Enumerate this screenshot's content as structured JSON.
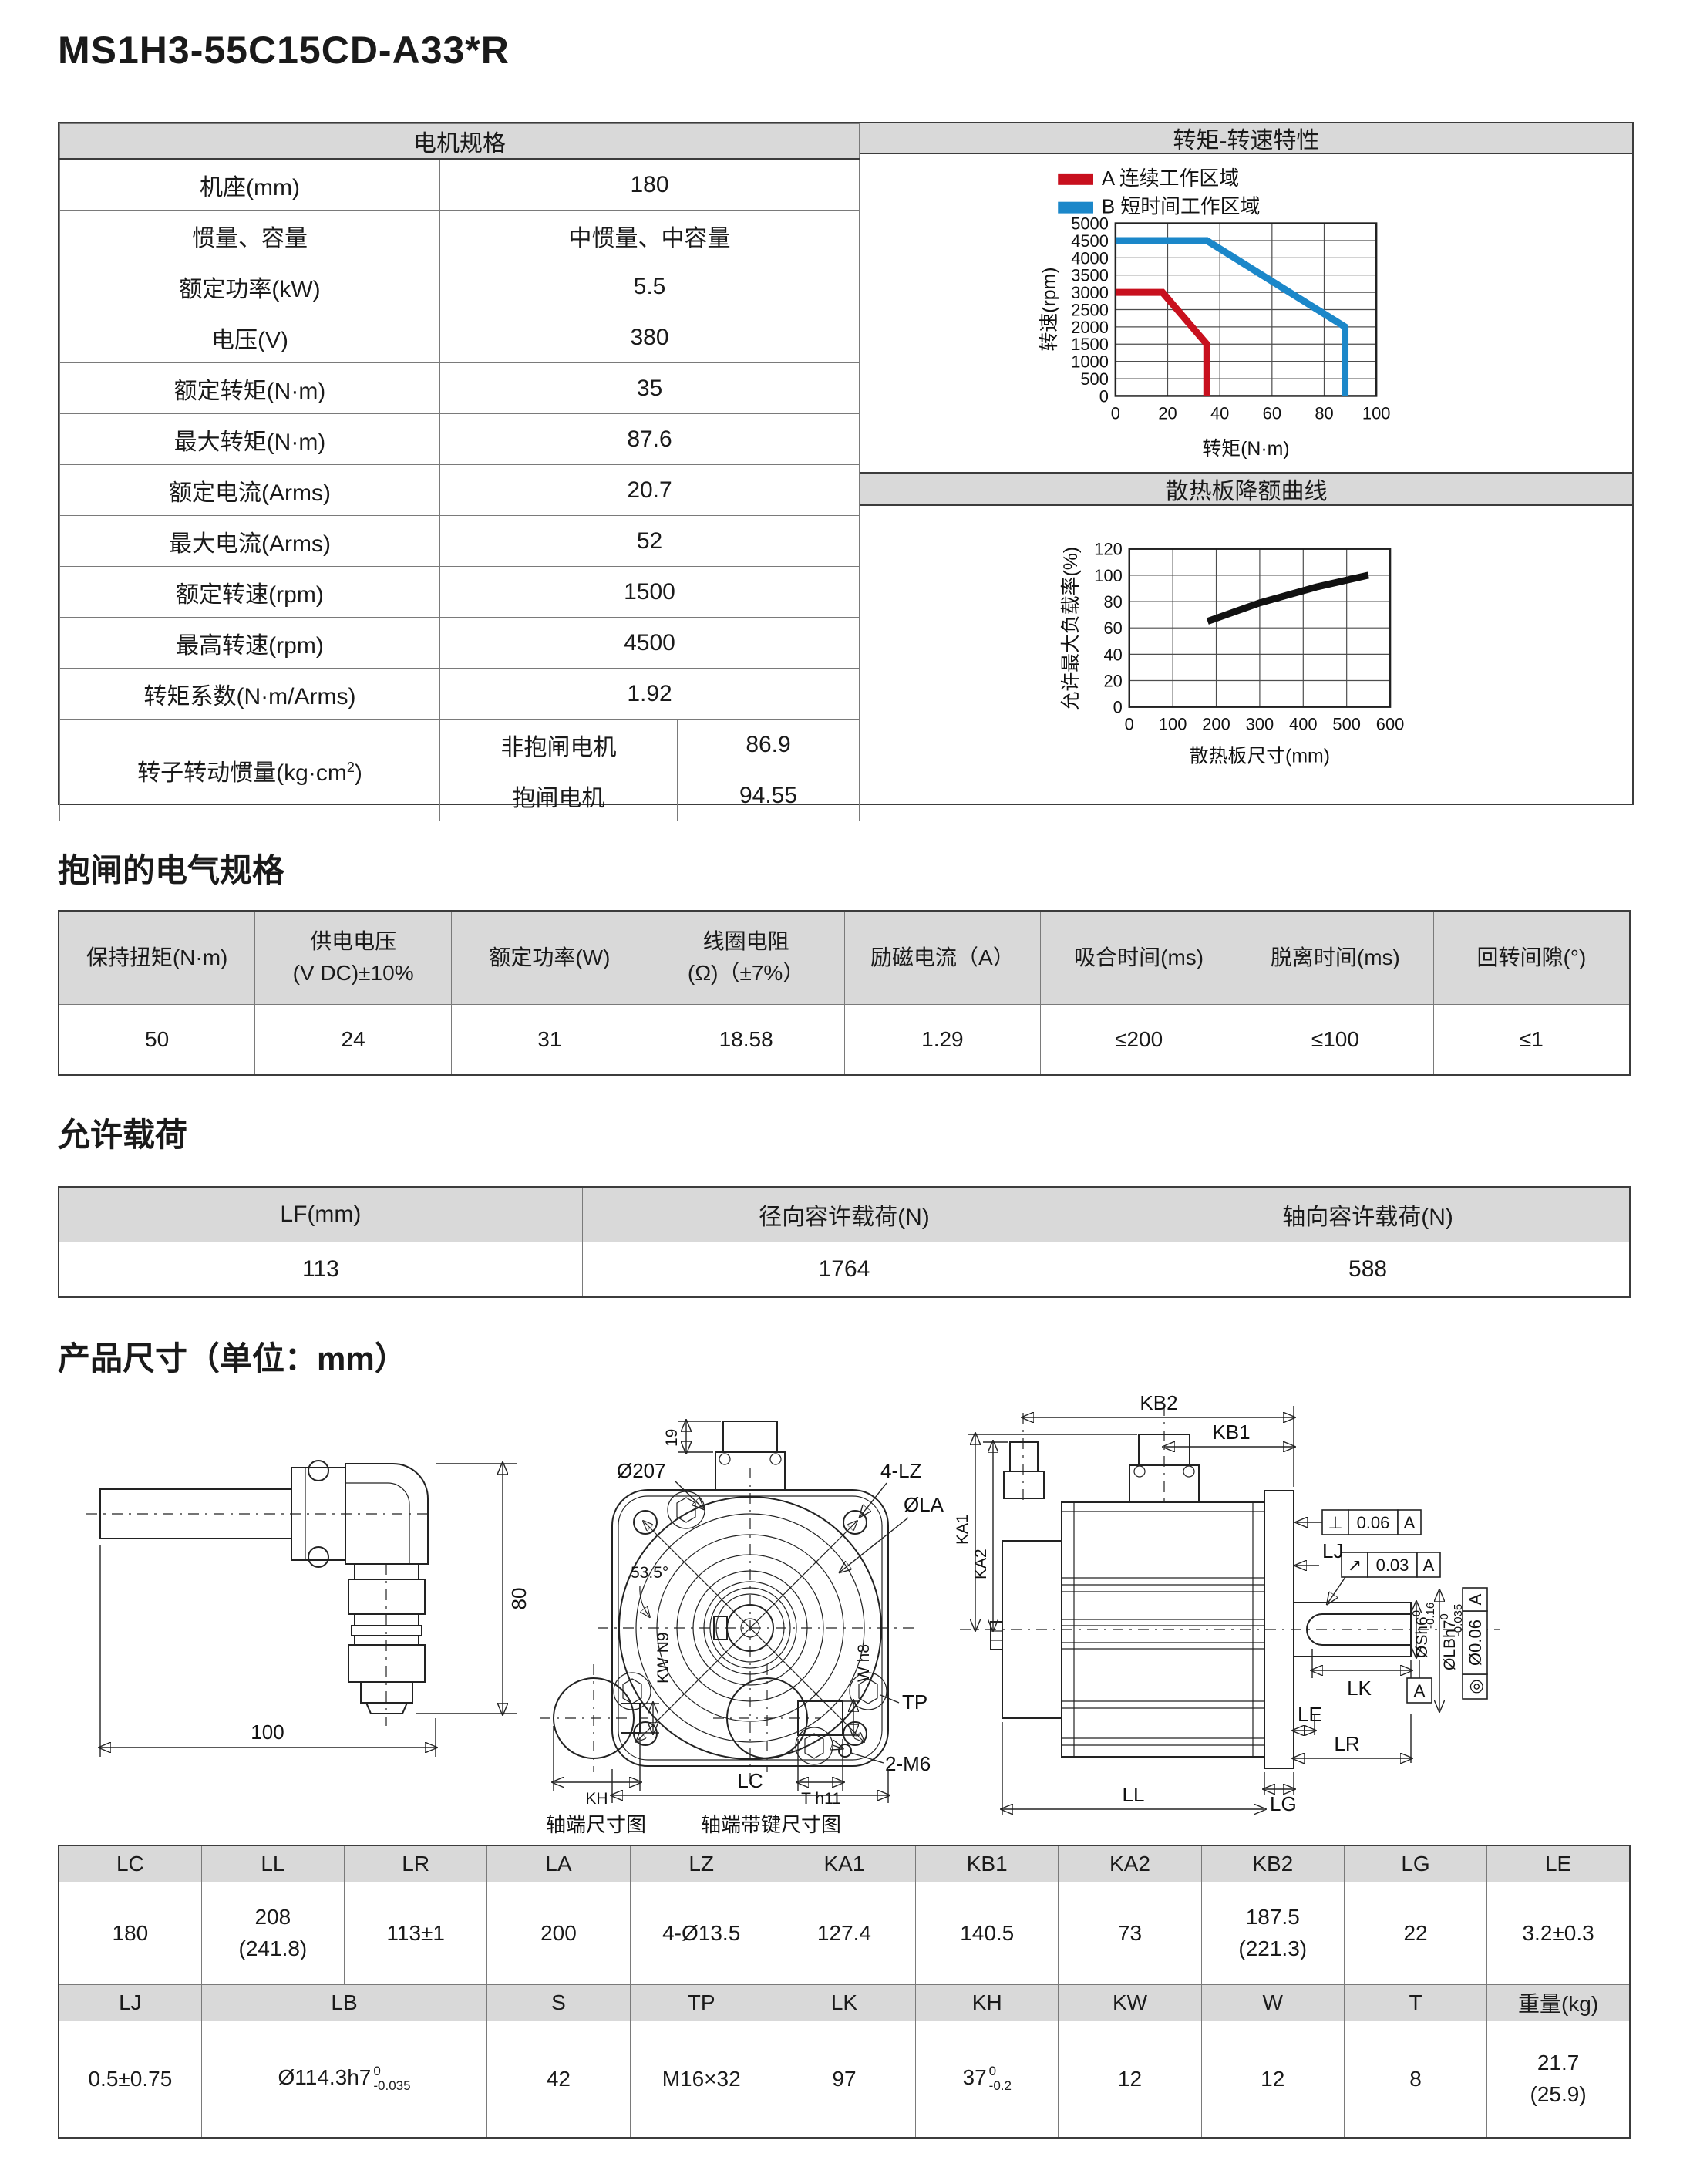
{
  "page": {
    "title": "MS1H3-55C15CD-A33*R"
  },
  "motor_spec": {
    "header": "电机规格",
    "rows": [
      {
        "label": "机座(mm)",
        "value": "180"
      },
      {
        "label": "惯量、容量",
        "value": "中惯量、中容量"
      },
      {
        "label": "额定功率(kW)",
        "value": "5.5"
      },
      {
        "label": "电压(V)",
        "value": "380"
      },
      {
        "label": "额定转矩(N·m)",
        "value": "35"
      },
      {
        "label": "最大转矩(N·m)",
        "value": "87.6"
      },
      {
        "label": "额定电流(Arms)",
        "value": "20.7"
      },
      {
        "label": "最大电流(Arms)",
        "value": "52"
      },
      {
        "label": "额定转速(rpm)",
        "value": "1500"
      },
      {
        "label": "最高转速(rpm)",
        "value": "4500"
      },
      {
        "label": "转矩系数(N·m/Arms)",
        "value": "1.92"
      }
    ],
    "inertia_label_base": "转子转动惯量(kg·cm",
    "inertia_label_sup": "2",
    "inertia_label_close": ")",
    "inertia_rows": [
      {
        "label": "非抱闸电机",
        "value": "86.9"
      },
      {
        "label": "抱闸电机",
        "value": "94.55"
      }
    ]
  },
  "torque_section": {
    "header": "转矩-转速特性"
  },
  "derating_section": {
    "header": "散热板降额曲线"
  },
  "chart_data": [
    {
      "type": "line",
      "title": "转矩-转速特性",
      "xlabel": "转矩(N·m)",
      "ylabel": "转速(rpm)",
      "xlim": [
        0,
        100
      ],
      "ylim": [
        0,
        5000
      ],
      "xticks": [
        0,
        20,
        40,
        60,
        80,
        100
      ],
      "yticks": [
        0,
        500,
        1000,
        1500,
        2000,
        2500,
        3000,
        3500,
        4000,
        4500,
        5000
      ],
      "grid": true,
      "legend_position": "top-left",
      "series": [
        {
          "name": "A 连续工作区域",
          "color": "#c8101e",
          "points": [
            [
              0,
              3000
            ],
            [
              18,
              3000
            ],
            [
              35,
              1500
            ],
            [
              35,
              0
            ]
          ]
        },
        {
          "name": "B 短时间工作区域",
          "color": "#1b87c9",
          "points": [
            [
              0,
              4500
            ],
            [
              35,
              4500
            ],
            [
              88,
              2000
            ],
            [
              88,
              0
            ]
          ]
        }
      ]
    },
    {
      "type": "line",
      "title": "散热板降额曲线",
      "xlabel": "散热板尺寸(mm)",
      "ylabel": "允许最大负载率(%)",
      "xlim": [
        0,
        600
      ],
      "ylim": [
        0,
        120
      ],
      "xticks": [
        0,
        100,
        200,
        300,
        400,
        500,
        600
      ],
      "yticks": [
        0,
        20,
        40,
        60,
        80,
        100,
        120
      ],
      "grid": true,
      "series": [
        {
          "name": "降额曲线",
          "color": "#111111",
          "points": [
            [
              180,
              65
            ],
            [
              300,
              79
            ],
            [
              430,
              91
            ],
            [
              550,
              100
            ]
          ]
        }
      ]
    }
  ],
  "brake_spec": {
    "title": "抱闸的电气规格",
    "headers": [
      "保持扭矩(N·m)",
      "供电电压\n(V DC)±10%",
      "额定功率(W)",
      "线圈电阻\n(Ω)（±7%）",
      "励磁电流（A）",
      "吸合时间(ms)",
      "脱离时间(ms)",
      "回转间隙(°)"
    ],
    "values": [
      "50",
      "24",
      "31",
      "18.58",
      "1.29",
      "≤200",
      "≤100",
      "≤1"
    ]
  },
  "allowable_load": {
    "title": "允许载荷",
    "headers": [
      "LF(mm)",
      "径向容许载荷(N)",
      "轴向容许载荷(N)"
    ],
    "values": [
      "113",
      "1764",
      "588"
    ]
  },
  "dimensions": {
    "title": "产品尺寸（单位：mm）",
    "row1_headers": [
      "LC",
      "LL",
      "LR",
      "LA",
      "LZ",
      "KA1",
      "KB1",
      "KA2",
      "KB2",
      "LG",
      "LE"
    ],
    "row1_values": [
      "180",
      "208\n(241.8)",
      "113±1",
      "200",
      "4-Ø13.5",
      "127.4",
      "140.5",
      "73",
      "187.5\n(221.3)",
      "22",
      "3.2±0.3"
    ],
    "row2_headers": [
      "LJ",
      "LB",
      "S",
      "TP",
      "LK",
      "KH",
      "KW",
      "W",
      "T",
      "重量(kg)"
    ],
    "row2_values": {
      "lj": "0.5±0.75",
      "lb": {
        "base": "Ø114.3h7",
        "sup": "0",
        "sub": "-0.035"
      },
      "s": "42",
      "tp": "M16×32",
      "lk": "97",
      "kh": {
        "base": "37",
        "sup": "0",
        "sub": "-0.2"
      },
      "kw": "12",
      "w": "12",
      "t": "8",
      "weight": "21.7\n(25.9)"
    }
  },
  "drawings": {
    "connector": {
      "dim_width": "100",
      "dim_height": "80"
    },
    "shaft_end": {
      "kw": "KW N9",
      "w": "W h8",
      "kh": "KH",
      "t": "T h11",
      "caption_plain": "轴端尺寸图",
      "caption_key": "轴端带键尺寸图"
    },
    "front_view": {
      "dia_outer": "Ø207",
      "dim_connector": "19",
      "angle": "53.5°",
      "holes": "4-LZ",
      "bolt_circle": "ØLA",
      "tp": "TP",
      "m6": "2-M6",
      "width": "LC"
    },
    "side_view": {
      "kb2": "KB2",
      "kb1": "KB1",
      "ka1": "KA1",
      "ka2": "KA2",
      "lj": "LJ",
      "perp_sym": "⊥",
      "perp_tol": "0.06",
      "perp_datum": "A",
      "runout_sym": "↗",
      "runout_tol": "0.03",
      "runout_datum": "A",
      "shaft_dia": {
        "base": "ØSh6",
        "sup": "0",
        "sub": "-0.16"
      },
      "pilot_dia": {
        "base": "ØLBh7",
        "sup": "0",
        "sub": "-0.035"
      },
      "conc_sym": "◎",
      "conc_tol": "Ø0.06",
      "conc_datum": "A",
      "datum_label": "A",
      "lk": "LK",
      "le": "LE",
      "lr": "LR",
      "lg": "LG",
      "ll": "LL"
    }
  }
}
